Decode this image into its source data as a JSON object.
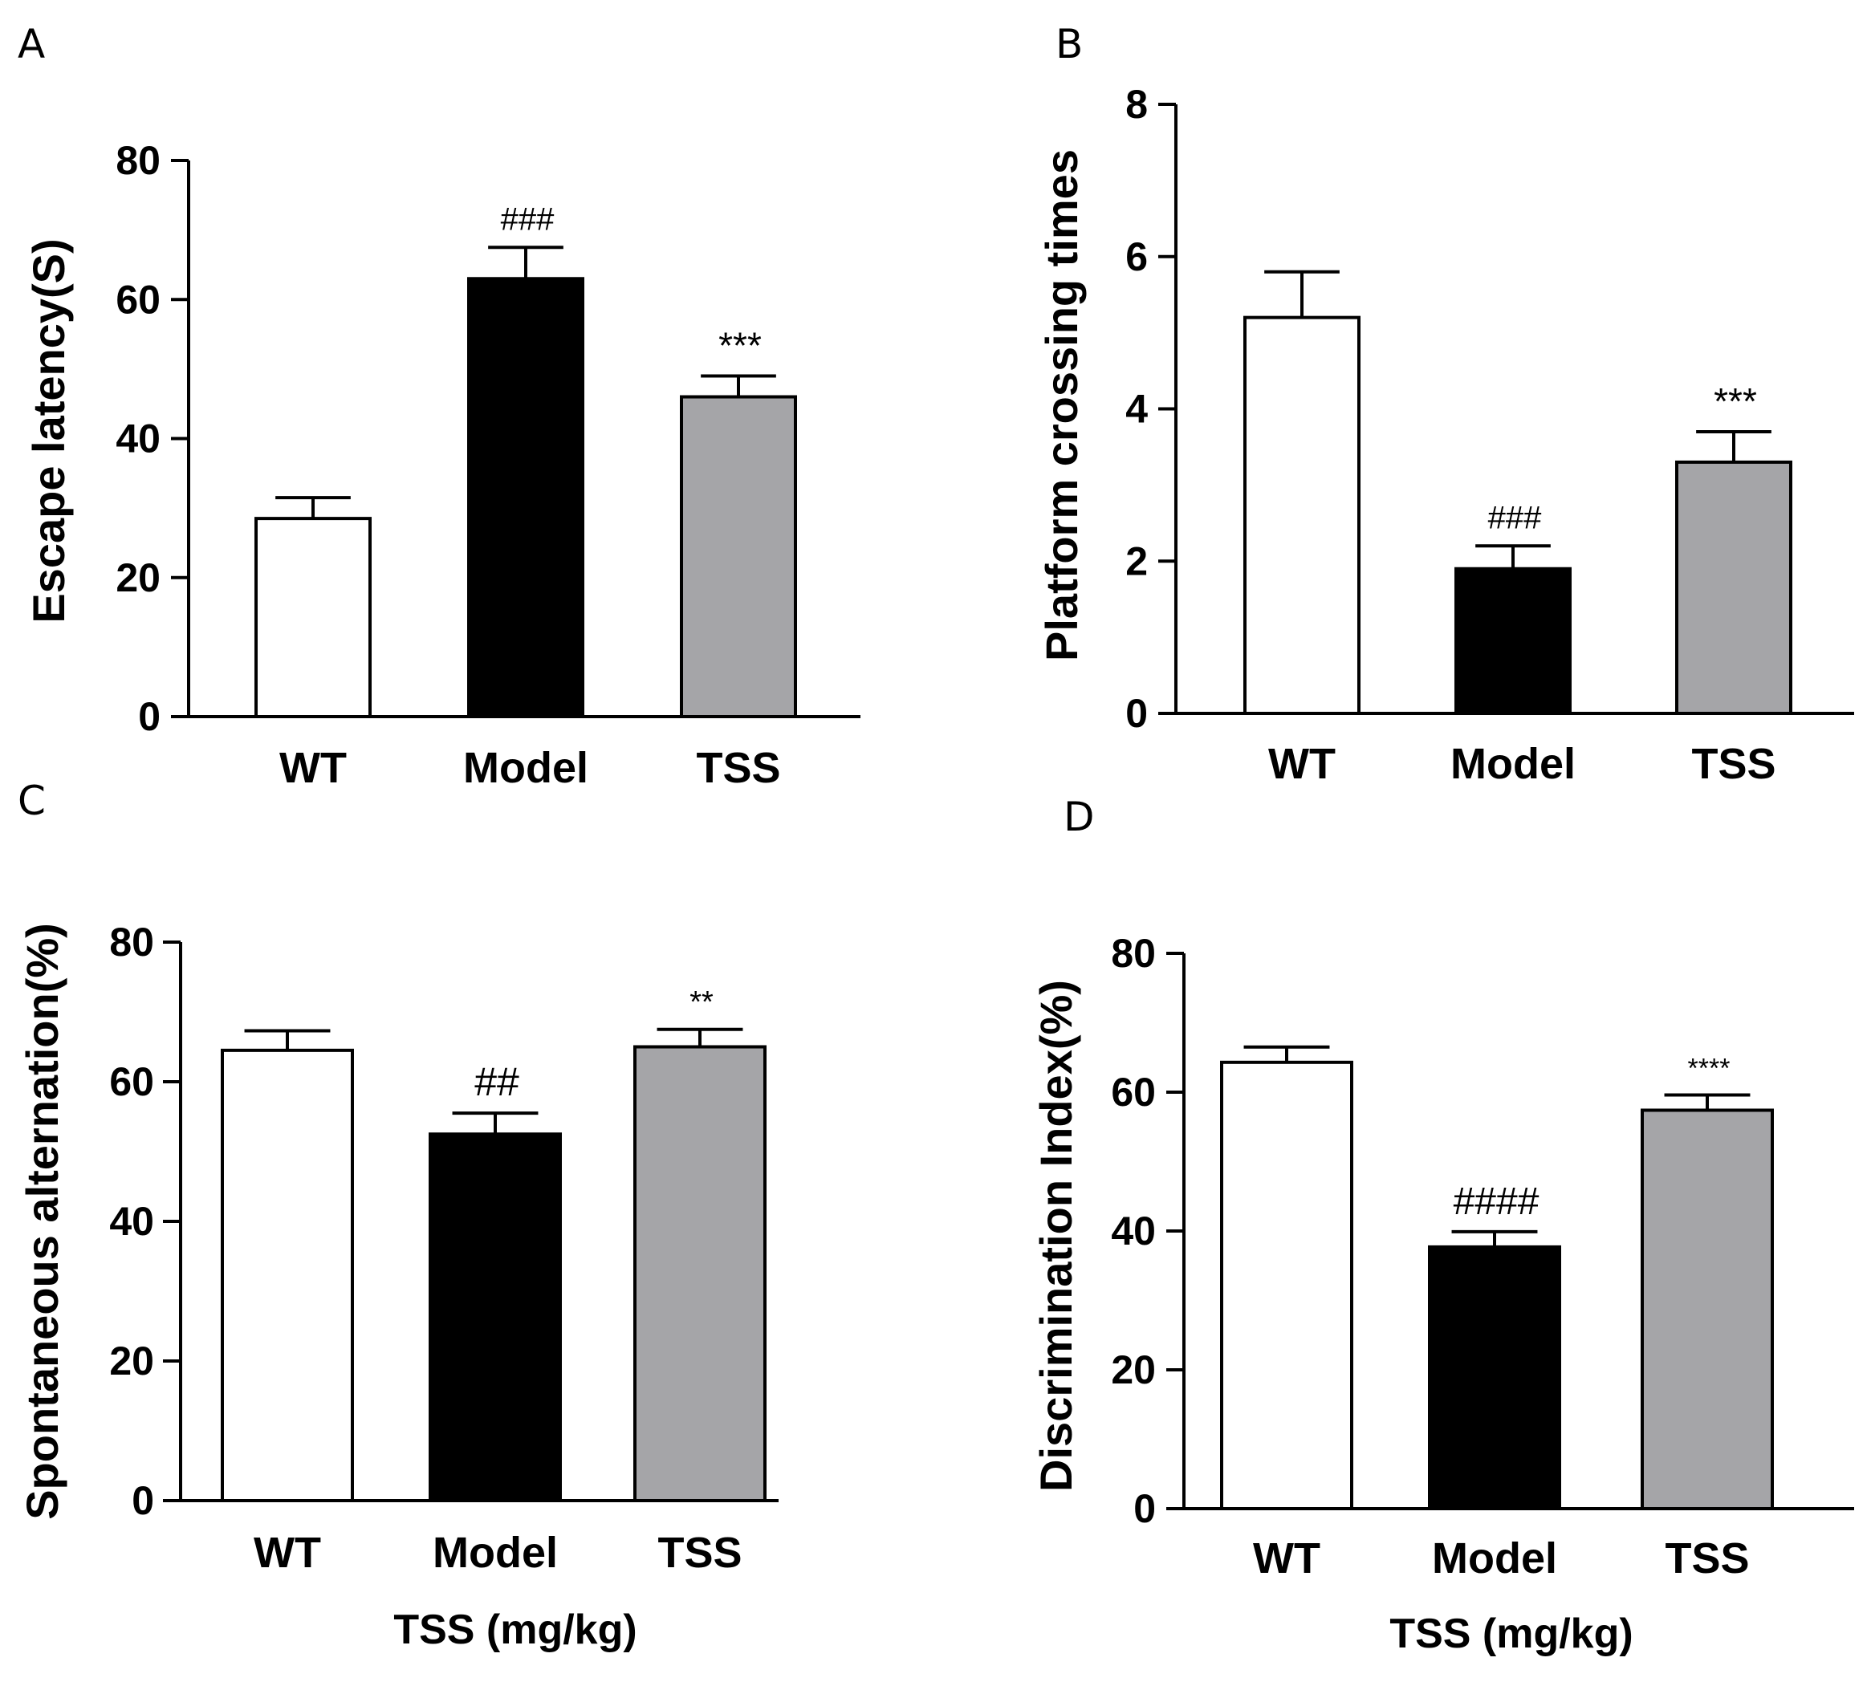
{
  "chart_data": [
    {
      "panel": "A",
      "type": "bar",
      "categories": [
        "WT",
        "Model",
        "TSS"
      ],
      "values": [
        28.5,
        63,
        46
      ],
      "errors": [
        3,
        4.5,
        3
      ],
      "annotations": [
        "",
        "###",
        "***"
      ],
      "ylabel": "Escape latency(S)",
      "xlabel": "",
      "ylim": [
        0,
        80
      ],
      "yticks": [
        0,
        20,
        40,
        60,
        80
      ],
      "bar_colors": [
        "#ffffff",
        "#000000",
        "#a5a5a8"
      ]
    },
    {
      "panel": "B",
      "type": "bar",
      "categories": [
        "WT",
        "Model",
        "TSS"
      ],
      "values": [
        5.2,
        1.9,
        3.3
      ],
      "errors": [
        0.6,
        0.3,
        0.4
      ],
      "annotations": [
        "",
        "###",
        "***"
      ],
      "ylabel": "Platform crossing times",
      "xlabel": "",
      "ylim": [
        0,
        8
      ],
      "yticks": [
        0,
        2,
        4,
        6,
        8
      ],
      "bar_colors": [
        "#ffffff",
        "#000000",
        "#a5a5a8"
      ]
    },
    {
      "panel": "C",
      "type": "bar",
      "categories": [
        "WT",
        "Model",
        "TSS"
      ],
      "values": [
        64.5,
        52.5,
        65
      ],
      "errors": [
        2.8,
        3,
        2.5
      ],
      "annotations": [
        "",
        "##",
        "**"
      ],
      "ylabel": "Spontaneous alternation(%)",
      "xlabel": "TSS (mg/kg)",
      "ylim": [
        0,
        80
      ],
      "yticks": [
        0,
        20,
        40,
        60,
        80
      ],
      "bar_colors": [
        "#ffffff",
        "#000000",
        "#a5a5a8"
      ]
    },
    {
      "panel": "D",
      "type": "bar",
      "categories": [
        "WT",
        "Model",
        "TSS"
      ],
      "values": [
        64.3,
        37.7,
        57.4
      ],
      "errors": [
        2.2,
        2.2,
        2.2
      ],
      "annotations": [
        "",
        "####",
        "****"
      ],
      "ylabel": "Discrimination Index(%)",
      "xlabel": "TSS (mg/kg)",
      "ylim": [
        0,
        80
      ],
      "yticks": [
        0,
        20,
        40,
        60,
        80
      ],
      "bar_colors": [
        "#ffffff",
        "#000000",
        "#a5a5a8"
      ]
    }
  ]
}
